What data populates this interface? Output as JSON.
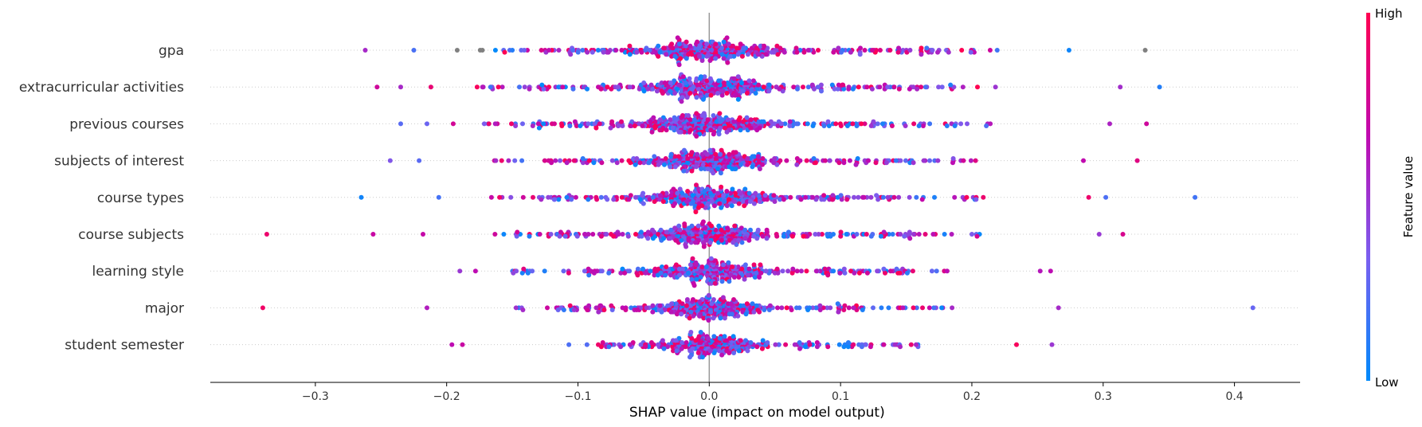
{
  "chart_data": {
    "type": "scatter",
    "subtype": "shap-beeswarm",
    "xlabel": "SHAP value (impact on model output)",
    "xlim": [
      -0.38,
      0.45
    ],
    "xticks": [
      -0.3,
      -0.2,
      -0.1,
      0.0,
      0.1,
      0.2,
      0.3,
      0.4
    ],
    "xtick_labels": [
      "−0.3",
      "−0.2",
      "−0.1",
      "0.0",
      "0.1",
      "0.2",
      "0.3",
      "0.4"
    ],
    "grid": false,
    "zero_line": true,
    "features": [
      {
        "name": "gpa",
        "min": -0.262,
        "max": 0.332,
        "spread": 0.2,
        "n": 420,
        "seed": 11,
        "extremes": [
          -0.262,
          -0.225,
          -0.192,
          0.332,
          0.274
        ]
      },
      {
        "name": "extracurricular activities",
        "min": -0.253,
        "max": 0.343,
        "spread": 0.2,
        "n": 420,
        "seed": 23,
        "extremes": [
          -0.253,
          -0.235,
          -0.212,
          0.343,
          0.313
        ]
      },
      {
        "name": "previous courses",
        "min": -0.235,
        "max": 0.333,
        "spread": 0.2,
        "n": 420,
        "seed": 37,
        "extremes": [
          -0.235,
          -0.215,
          -0.195,
          0.333,
          0.305
        ]
      },
      {
        "name": "subjects of interest",
        "min": -0.243,
        "max": 0.326,
        "spread": 0.19,
        "n": 400,
        "seed": 41,
        "extremes": [
          -0.243,
          -0.221,
          0.326,
          0.285
        ]
      },
      {
        "name": "course types",
        "min": -0.265,
        "max": 0.37,
        "spread": 0.19,
        "n": 400,
        "seed": 53,
        "extremes": [
          -0.265,
          -0.206,
          0.37,
          0.302,
          0.289
        ]
      },
      {
        "name": "course subjects",
        "min": -0.337,
        "max": 0.315,
        "spread": 0.19,
        "n": 400,
        "seed": 67,
        "extremes": [
          -0.337,
          -0.256,
          -0.218,
          0.315,
          0.297
        ]
      },
      {
        "name": "learning style",
        "min": -0.19,
        "max": 0.26,
        "spread": 0.17,
        "n": 380,
        "seed": 71,
        "extremes": [
          -0.19,
          -0.178,
          0.26,
          0.252
        ]
      },
      {
        "name": "major",
        "min": -0.34,
        "max": 0.414,
        "spread": 0.17,
        "n": 370,
        "seed": 83,
        "extremes": [
          -0.34,
          -0.215,
          0.414,
          0.266
        ]
      },
      {
        "name": "student semester",
        "min": -0.196,
        "max": 0.261,
        "spread": 0.14,
        "n": 320,
        "seed": 97,
        "extremes": [
          -0.196,
          -0.188,
          0.261,
          0.234
        ]
      }
    ],
    "colorbar": {
      "label": "Feature value",
      "high_label": "High",
      "low_label": "Low",
      "colors": [
        "#008afb",
        "#7a5ff0",
        "#c00ab0",
        "#ff0051"
      ]
    },
    "missing_color": "#808080",
    "axis_color": "#000000",
    "zero_line_color": "#999999"
  }
}
